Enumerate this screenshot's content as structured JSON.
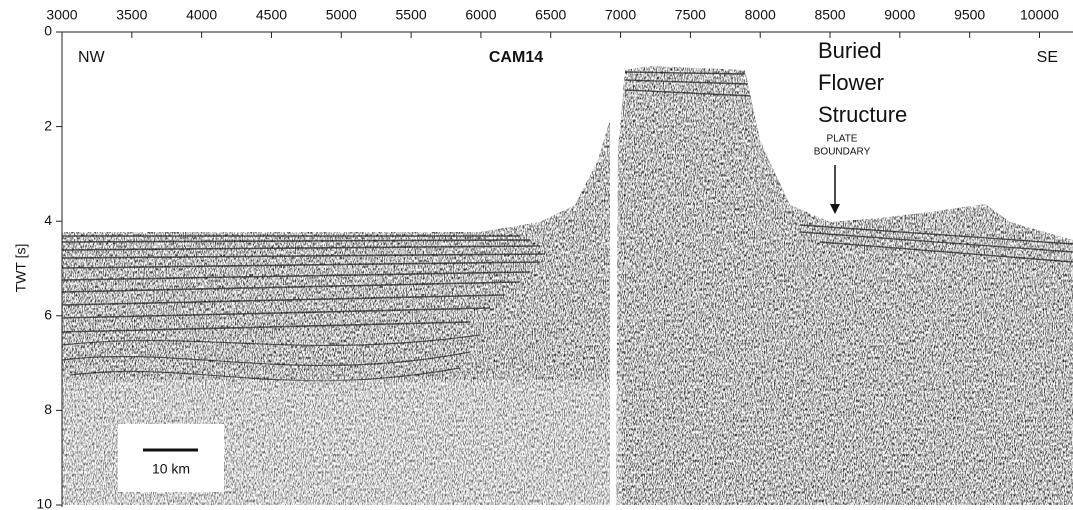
{
  "chart_data": {
    "type": "seismic-section",
    "profile": "CAM14",
    "ylabel": "TWT [s]",
    "xlim": [
      3000,
      10240
    ],
    "xticks": [
      3000,
      3500,
      4000,
      4500,
      5000,
      5500,
      6000,
      6500,
      7000,
      7500,
      8000,
      8500,
      9000,
      9500,
      10000
    ],
    "ylim": [
      0,
      10
    ],
    "yticks": [
      0,
      2,
      4,
      6,
      8,
      10
    ],
    "annotations": {
      "left": "NW",
      "right": "SE",
      "feature": [
        "Buried",
        "Flower",
        "Structure"
      ],
      "boundary": [
        "PLATE",
        "BOUNDARY"
      ],
      "scale": "10 km"
    }
  }
}
